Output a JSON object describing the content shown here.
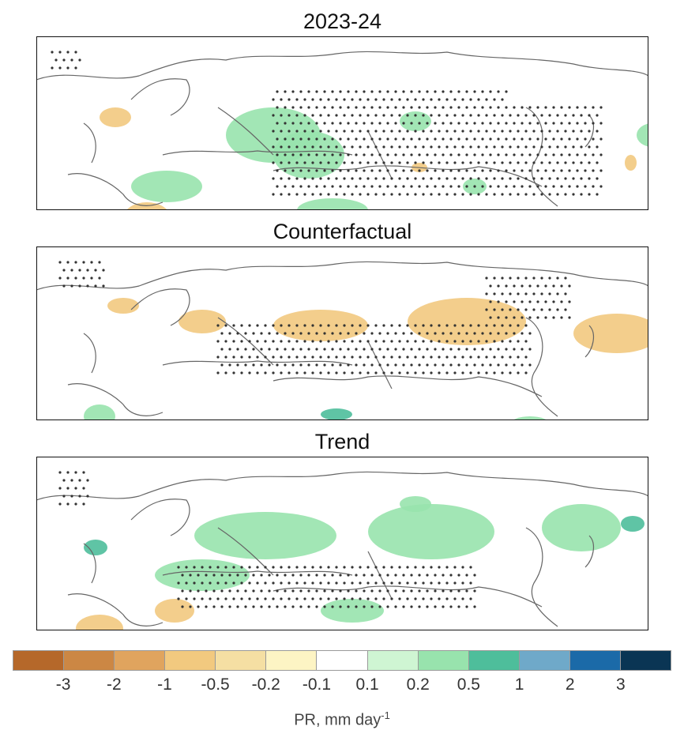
{
  "panels": [
    {
      "title": "2023-24",
      "green": [
        [
          240,
          90,
          120,
          70
        ],
        [
          300,
          120,
          90,
          60
        ],
        [
          120,
          170,
          90,
          40
        ],
        [
          460,
          95,
          40,
          25
        ],
        [
          330,
          205,
          90,
          30
        ],
        [
          760,
          110,
          40,
          30
        ],
        [
          540,
          180,
          30,
          20
        ]
      ],
      "brown": [
        [
          80,
          90,
          40,
          25
        ],
        [
          110,
          210,
          60,
          40
        ],
        [
          475,
          160,
          20,
          12
        ],
        [
          745,
          150,
          15,
          20
        ]
      ],
      "blue": [
        [
          250,
          240,
          40,
          15
        ],
        [
          395,
          250,
          20,
          12
        ]
      ],
      "stipple": [
        [
          300,
          70,
          300,
          140
        ],
        [
          600,
          90,
          120,
          120
        ],
        [
          20,
          20,
          40,
          30
        ]
      ]
    },
    {
      "title": "Counterfactual",
      "green": [
        [
          60,
          200,
          40,
          30
        ],
        [
          300,
          220,
          80,
          25
        ],
        [
          600,
          215,
          50,
          20
        ]
      ],
      "brown": [
        [
          470,
          65,
          150,
          60
        ],
        [
          300,
          80,
          120,
          40
        ],
        [
          680,
          85,
          110,
          50
        ],
        [
          180,
          80,
          60,
          30
        ],
        [
          90,
          65,
          40,
          20
        ]
      ],
      "blue": [
        [
          360,
          205,
          40,
          15
        ]
      ],
      "stipple": [
        [
          230,
          100,
          400,
          70
        ],
        [
          30,
          20,
          60,
          40
        ],
        [
          570,
          40,
          110,
          60
        ]
      ]
    },
    {
      "title": "Trend",
      "green": [
        [
          200,
          70,
          180,
          60
        ],
        [
          420,
          60,
          160,
          70
        ],
        [
          640,
          60,
          100,
          60
        ],
        [
          150,
          130,
          120,
          40
        ],
        [
          360,
          180,
          80,
          30
        ],
        [
          460,
          50,
          40,
          20
        ]
      ],
      "brown": [
        [
          50,
          200,
          60,
          35
        ],
        [
          150,
          180,
          50,
          30
        ]
      ],
      "blue": [
        [
          740,
          75,
          30,
          20
        ],
        [
          60,
          105,
          30,
          20
        ]
      ],
      "stipple": [
        [
          180,
          140,
          380,
          60
        ],
        [
          30,
          20,
          40,
          50
        ]
      ]
    }
  ],
  "colorbar": {
    "colors": [
      "#b5682a",
      "#cc8744",
      "#e0a45e",
      "#f2c97f",
      "#f5dfa3",
      "#fdf4c4",
      "#ffffff",
      "#cff5d3",
      "#98e3ad",
      "#4ebe9b",
      "#6fa9c9",
      "#1b6aa8",
      "#0a3554"
    ],
    "ticks": [
      "-3",
      "-2",
      "-1",
      "-0.5",
      "-0.2",
      "-0.1",
      "0.1",
      "0.2",
      "0.5",
      "1",
      "2",
      "3"
    ],
    "label": "PR, mm day",
    "label_sup": "-1"
  }
}
